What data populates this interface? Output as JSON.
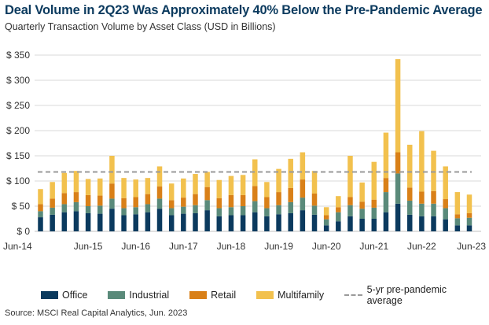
{
  "header": {
    "title": "Deal Volume in 2Q23 Was Approximately 40% Below the Pre-Pandemic Average",
    "subtitle": "Quarterly Transaction Volume by Asset Class (USD in Billions)"
  },
  "source": "Source: MSCI Real Capital Analytics, Jun. 2023",
  "colors": {
    "office": "#0b3a5e",
    "industrial": "#5a8a7a",
    "retail": "#d98018",
    "multifamily": "#f2c14e",
    "average": "#9a9a9a"
  },
  "legend": {
    "office": "Office",
    "industrial": "Industrial",
    "retail": "Retail",
    "multifamily": "Multifamily",
    "average": "5-yr pre-pandemic average"
  },
  "chart_data": {
    "type": "bar",
    "stacked": true,
    "title": "Deal Volume in 2Q23 Was Approximately 40% Below the Pre-Pandemic Average",
    "subtitle": "Quarterly Transaction Volume by Asset Class (USD in Billions)",
    "categories": [
      "2Q14",
      "3Q14",
      "4Q14",
      "1Q15",
      "2Q15",
      "3Q15",
      "4Q15",
      "1Q16",
      "2Q16",
      "3Q16",
      "4Q16",
      "1Q17",
      "2Q17",
      "3Q17",
      "4Q17",
      "1Q18",
      "2Q18",
      "3Q18",
      "4Q18",
      "1Q19",
      "2Q19",
      "3Q19",
      "4Q19",
      "1Q20",
      "2Q20",
      "3Q20",
      "4Q20",
      "1Q21",
      "2Q21",
      "3Q21",
      "4Q21",
      "1Q22",
      "2Q22",
      "3Q22",
      "4Q22",
      "1Q23",
      "2Q23"
    ],
    "x_tick_labels": [
      {
        "index": 0,
        "label": "Jun-14"
      },
      {
        "index": 4,
        "label": "Jun-15"
      },
      {
        "index": 8,
        "label": "Jun-16"
      },
      {
        "index": 12,
        "label": "Jun-17"
      },
      {
        "index": 16,
        "label": "Jun-18"
      },
      {
        "index": 20,
        "label": "Jun-19"
      },
      {
        "index": 24,
        "label": "Jun-20"
      },
      {
        "index": 28,
        "label": "Jun-21"
      },
      {
        "index": 32,
        "label": "Jun-22"
      },
      {
        "index": 36,
        "label": "Jun-23"
      }
    ],
    "series": [
      {
        "name": "Office",
        "values": [
          28,
          33,
          38,
          40,
          36,
          35,
          45,
          32,
          34,
          38,
          45,
          32,
          35,
          36,
          42,
          30,
          32,
          32,
          38,
          30,
          34,
          36,
          42,
          33,
          12,
          20,
          30,
          25,
          25,
          38,
          55,
          33,
          30,
          30,
          24,
          12,
          12
        ]
      },
      {
        "name": "Industrial",
        "values": [
          12,
          14,
          16,
          18,
          14,
          16,
          20,
          14,
          14,
          16,
          20,
          14,
          14,
          16,
          20,
          16,
          16,
          18,
          22,
          16,
          18,
          22,
          25,
          18,
          12,
          18,
          22,
          20,
          22,
          40,
          60,
          28,
          25,
          25,
          22,
          14,
          15
        ]
      },
      {
        "name": "Retail",
        "values": [
          14,
          18,
          22,
          20,
          22,
          20,
          30,
          20,
          20,
          20,
          24,
          16,
          18,
          22,
          26,
          20,
          24,
          22,
          30,
          22,
          26,
          28,
          36,
          24,
          8,
          10,
          16,
          14,
          16,
          28,
          42,
          26,
          24,
          25,
          18,
          8,
          9
        ]
      },
      {
        "name": "Multifamily",
        "values": [
          30,
          33,
          40,
          42,
          32,
          34,
          55,
          40,
          35,
          32,
          40,
          33,
          38,
          40,
          30,
          36,
          38,
          40,
          53,
          30,
          46,
          58,
          54,
          45,
          16,
          22,
          82,
          38,
          75,
          90,
          185,
          85,
          120,
          80,
          65,
          44,
          37
        ]
      }
    ],
    "reference_line": {
      "name": "5-yr pre-pandemic average",
      "value": 118
    },
    "ylim": [
      0,
      350
    ],
    "yticks": [
      0,
      50,
      100,
      150,
      200,
      250,
      300,
      350
    ],
    "ytick_labels": [
      "$ 0",
      "$ 50",
      "$ 100",
      "$ 150",
      "$ 200",
      "$ 250",
      "$ 300",
      "$ 350"
    ],
    "grid": true,
    "legend_position": "bottom"
  }
}
